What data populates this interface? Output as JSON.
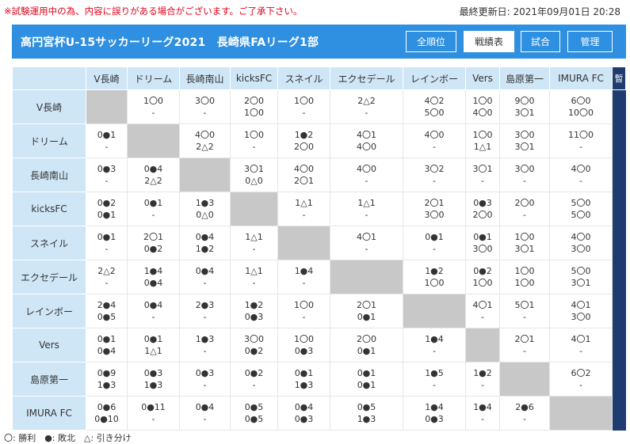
{
  "notice": "※試験運用中の為、内容に誤りがある場合がございます。ご了承下さい。",
  "last_updated": "最終更新日: 2021年09月01日 20:28",
  "header": {
    "title": "高円宮杯U-15サッカーリーグ2021　長崎県FAリーグ1部",
    "nav": [
      {
        "label": "全順位",
        "active": false
      },
      {
        "label": "戦績表",
        "active": true
      },
      {
        "label": "試合",
        "active": false
      },
      {
        "label": "管理",
        "active": false
      }
    ]
  },
  "table": {
    "extra_col_header": "暫",
    "teams": [
      "V長崎",
      "ドリーム",
      "長崎南山",
      "kicksFC",
      "スネイル",
      "エクセデール",
      "レインボー",
      "Vers",
      "島原第一",
      "IMURA FC"
    ],
    "rows": [
      {
        "team": "V長崎",
        "cells": [
          null,
          [
            "1〇0",
            "-"
          ],
          [
            "3〇0",
            "-"
          ],
          [
            "2〇0",
            "1〇0"
          ],
          [
            "1〇0",
            "-"
          ],
          [
            "2△2",
            "-"
          ],
          [
            "4〇2",
            "5〇0"
          ],
          [
            "1〇0",
            "4〇0"
          ],
          [
            "9〇0",
            "3〇1"
          ],
          [
            "6〇0",
            "10〇0"
          ]
        ]
      },
      {
        "team": "ドリーム",
        "cells": [
          [
            "0●1",
            "-"
          ],
          null,
          [
            "4〇0",
            "2△2"
          ],
          [
            "1〇0",
            "-"
          ],
          [
            "1●2",
            "2〇0"
          ],
          [
            "4〇1",
            "4〇0"
          ],
          [
            "4〇0",
            "-"
          ],
          [
            "1〇0",
            "1△1"
          ],
          [
            "3〇0",
            "3〇1"
          ],
          [
            "11〇0",
            "-"
          ]
        ]
      },
      {
        "team": "長崎南山",
        "cells": [
          [
            "0●3",
            "-"
          ],
          [
            "0●4",
            "2△2"
          ],
          null,
          [
            "3〇1",
            "0△0"
          ],
          [
            "4〇0",
            "2〇1"
          ],
          [
            "4〇0",
            "-"
          ],
          [
            "3〇2",
            "-"
          ],
          [
            "3〇1",
            "-"
          ],
          [
            "3〇0",
            "-"
          ],
          [
            "4〇0",
            "-"
          ]
        ]
      },
      {
        "team": "kicksFC",
        "cells": [
          [
            "0●2",
            "0●1"
          ],
          [
            "0●1",
            "-"
          ],
          [
            "1●3",
            "0△0"
          ],
          null,
          [
            "1△1",
            "-"
          ],
          [
            "1△1",
            "-"
          ],
          [
            "2〇1",
            "3〇0"
          ],
          [
            "0●3",
            "2〇0"
          ],
          [
            "2〇0",
            "-"
          ],
          [
            "5〇0",
            "5〇0"
          ]
        ]
      },
      {
        "team": "スネイル",
        "cells": [
          [
            "0●1",
            "-"
          ],
          [
            "2〇1",
            "0●2"
          ],
          [
            "0●4",
            "1●2"
          ],
          [
            "1△1",
            "-"
          ],
          null,
          [
            "4〇1",
            "-"
          ],
          [
            "0●1",
            "-"
          ],
          [
            "0●1",
            "3〇0"
          ],
          [
            "1〇0",
            "3〇1"
          ],
          [
            "4〇0",
            "3〇0"
          ]
        ]
      },
      {
        "team": "エクセデール",
        "cells": [
          [
            "2△2",
            "-"
          ],
          [
            "1●4",
            "0●4"
          ],
          [
            "0●4",
            "-"
          ],
          [
            "1△1",
            "-"
          ],
          [
            "1●4",
            "-"
          ],
          null,
          [
            "1●2",
            "1〇0"
          ],
          [
            "0●2",
            "1〇0"
          ],
          [
            "1〇0",
            "1〇0"
          ],
          [
            "5〇0",
            "3〇1"
          ]
        ]
      },
      {
        "team": "レインボー",
        "cells": [
          [
            "2●4",
            "0●5"
          ],
          [
            "0●4",
            "-"
          ],
          [
            "2●3",
            "-"
          ],
          [
            "1●2",
            "0●3"
          ],
          [
            "1〇0",
            "-"
          ],
          [
            "2〇1",
            "0●1"
          ],
          null,
          [
            "4〇1",
            "-"
          ],
          [
            "5〇1",
            "-"
          ],
          [
            "4〇1",
            "3〇0"
          ]
        ]
      },
      {
        "team": "Vers",
        "cells": [
          [
            "0●1",
            "0●4"
          ],
          [
            "0●1",
            "1△1"
          ],
          [
            "1●3",
            "-"
          ],
          [
            "3〇0",
            "0●2"
          ],
          [
            "1〇0",
            "0●3"
          ],
          [
            "2〇0",
            "0●1"
          ],
          [
            "1●4",
            "-"
          ],
          null,
          [
            "2〇1",
            "-"
          ],
          [
            "4〇1",
            "-"
          ]
        ]
      },
      {
        "team": "島原第一",
        "cells": [
          [
            "0●9",
            "1●3"
          ],
          [
            "0●3",
            "1●3"
          ],
          [
            "0●3",
            "-"
          ],
          [
            "0●2",
            "-"
          ],
          [
            "0●1",
            "1●3"
          ],
          [
            "0●1",
            "0●1"
          ],
          [
            "1●5",
            "-"
          ],
          [
            "1●2",
            "-"
          ],
          null,
          [
            "6〇2",
            "-"
          ]
        ]
      },
      {
        "team": "IMURA FC",
        "cells": [
          [
            "0●6",
            "0●10"
          ],
          [
            "0●11",
            "-"
          ],
          [
            "0●4",
            "-"
          ],
          [
            "0●5",
            "0●5"
          ],
          [
            "0●4",
            "0●3"
          ],
          [
            "0●5",
            "1●3"
          ],
          [
            "1●4",
            "0●3"
          ],
          [
            "1●4",
            "-"
          ],
          [
            "2●6",
            "-"
          ],
          null
        ]
      }
    ]
  },
  "legend": "〇: 勝利　●: 敗北　△: 引き分け"
}
